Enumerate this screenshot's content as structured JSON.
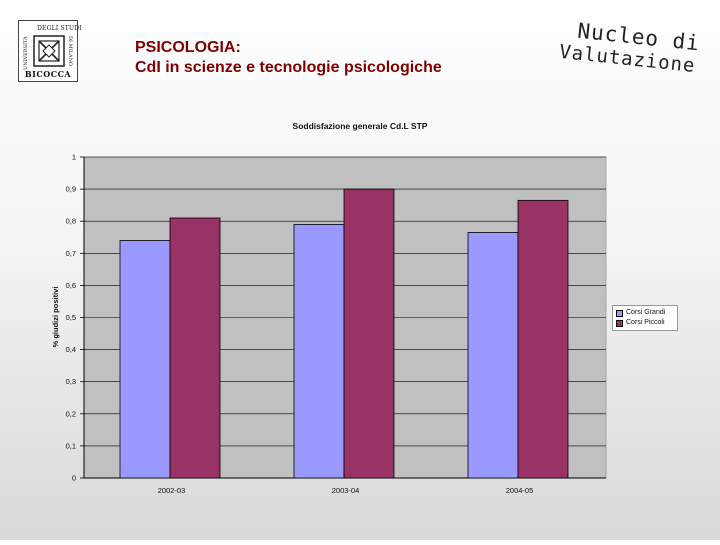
{
  "slide": {
    "title_lines": [
      "PSICOLOGIA:",
      "CdI in scienze e tecnologie psicologiche"
    ],
    "stamp_lines": [
      "Nucleo di",
      "Valutazione"
    ],
    "logo": {
      "top_text": "DEGLI STUDI",
      "left_text": "UNIVERSITÀ",
      "right_text": "DI MILANO",
      "bottom_text": "BICOCCA"
    }
  },
  "colors": {
    "title": "#800000",
    "plot_bg": "#c0c0c0",
    "series_1": "#9999ff",
    "series_2": "#993366",
    "axis": "#000000",
    "grid": "#000000"
  },
  "chart_data": {
    "type": "bar",
    "title": "Soddisfazione generale Cd.L STP",
    "xlabel": "",
    "ylabel": "% giudizi positivi",
    "categories": [
      "2002-03",
      "2003-04",
      "2004-05"
    ],
    "ylim": [
      0,
      1
    ],
    "yticks": [
      0,
      0.1,
      0.2,
      0.3,
      0.4,
      0.5,
      0.6,
      0.7,
      0.8,
      0.9,
      1
    ],
    "ytick_labels": [
      "0",
      "0,1",
      "0,2",
      "0,3",
      "0,4",
      "0,5",
      "0,6",
      "0,7",
      "0,8",
      "0,9",
      "1"
    ],
    "grid": true,
    "legend_position": "right",
    "series": [
      {
        "name": "Corsi Grandi",
        "values": [
          0.74,
          0.79,
          0.765
        ]
      },
      {
        "name": "Corsi Piccoli",
        "values": [
          0.81,
          0.9,
          0.865
        ]
      }
    ]
  }
}
